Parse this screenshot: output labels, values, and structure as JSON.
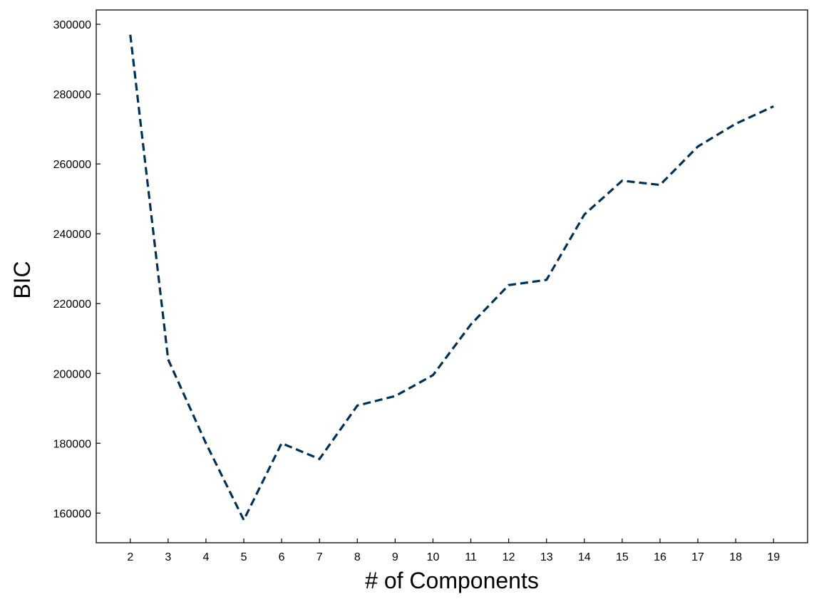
{
  "chart_data": {
    "type": "line",
    "title": "",
    "xlabel": "# of Components",
    "ylabel": "BIC",
    "x": [
      2,
      3,
      4,
      5,
      6,
      7,
      8,
      9,
      10,
      11,
      12,
      13,
      14,
      15,
      16,
      17,
      18,
      19
    ],
    "series": [
      {
        "values": [
          297000,
          204000,
          180000,
          158000,
          180000,
          175500,
          190800,
          193500,
          199500,
          214000,
          225300,
          226800,
          245500,
          255200,
          254000,
          265000,
          271500,
          276500
        ],
        "color": "#00315a",
        "style": "dashed"
      }
    ],
    "xticks": [
      "2",
      "3",
      "4",
      "5",
      "6",
      "7",
      "8",
      "9",
      "10",
      "11",
      "12",
      "13",
      "14",
      "15",
      "16",
      "17",
      "18",
      "19"
    ],
    "yticks": [
      "160000",
      "180000",
      "200000",
      "220000",
      "240000",
      "260000",
      "280000",
      "300000"
    ],
    "xlim": [
      1.1,
      19.9
    ],
    "ylim": [
      151500,
      304100
    ],
    "grid": false,
    "legend": "none"
  }
}
